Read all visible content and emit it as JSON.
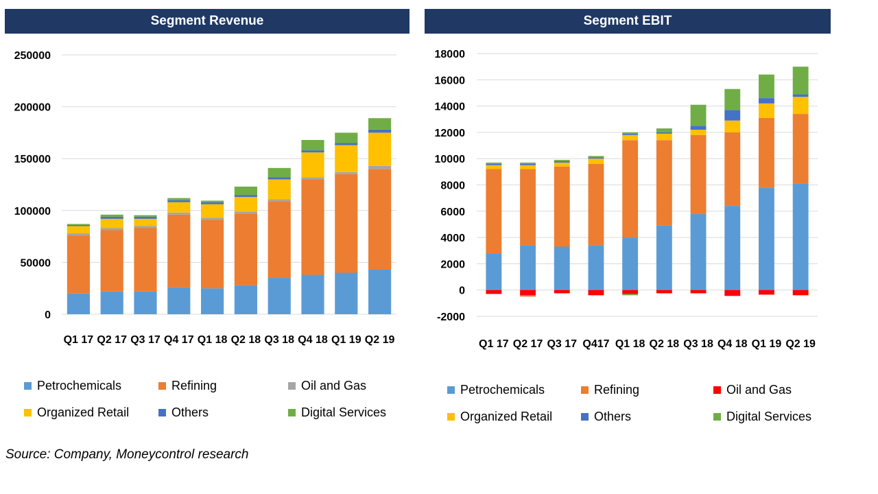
{
  "colors": {
    "Petrochemicals": "#5b9bd5",
    "Refining": "#ed7d31",
    "Oil and Gas": "#a5a5a5",
    "Organized Retail": "#ffc000",
    "Others": "#4472c4",
    "Digital Services": "#70ad47",
    "Oil and Gas EBIT": "#ff0000"
  },
  "source": "Source: Company, Moneycontrol research",
  "chart_data": [
    {
      "type": "bar",
      "stacked": true,
      "title": "Segment Revenue",
      "categories": [
        "Q1 17",
        "Q2 17",
        "Q3 17",
        "Q4 17",
        "Q1 18",
        "Q2 18",
        "Q3 18",
        "Q4 18",
        "Q1 19",
        "Q2 19"
      ],
      "ylim": [
        0,
        250000
      ],
      "yticks": [
        "0",
        "50000",
        "100000",
        "150000",
        "200000",
        "250000"
      ],
      "grid": true,
      "series": [
        {
          "name": "Petrochemicals",
          "color": "#5b9bd5",
          "values": [
            20000,
            22000,
            22000,
            26000,
            25000,
            28000,
            35000,
            38000,
            40000,
            43000
          ]
        },
        {
          "name": "Refining",
          "color": "#ed7d31",
          "values": [
            56000,
            59000,
            61000,
            70000,
            66000,
            69000,
            74000,
            92000,
            95000,
            97000
          ]
        },
        {
          "name": "Oil and Gas",
          "color": "#a5a5a5",
          "values": [
            2000,
            2000,
            2000,
            2000,
            2000,
            2000,
            2000,
            2000,
            2000,
            3000
          ]
        },
        {
          "name": "Organized Retail",
          "color": "#ffc000",
          "values": [
            7000,
            9000,
            7000,
            10000,
            13000,
            14000,
            19000,
            24000,
            26000,
            32000
          ]
        },
        {
          "name": "Others",
          "color": "#4472c4",
          "values": [
            1000,
            2000,
            2000,
            2000,
            2000,
            2000,
            2000,
            2000,
            2000,
            3000
          ]
        },
        {
          "name": "Digital Services",
          "color": "#70ad47",
          "values": [
            1000,
            2000,
            1500,
            2000,
            1500,
            8000,
            9000,
            10000,
            10000,
            11000
          ]
        }
      ],
      "legend": [
        {
          "label": "Petrochemicals",
          "color": "#5b9bd5"
        },
        {
          "label": "Refining",
          "color": "#ed7d31"
        },
        {
          "label": "Oil and Gas",
          "color": "#a5a5a5"
        },
        {
          "label": "Organized Retail",
          "color": "#ffc000"
        },
        {
          "label": "Others",
          "color": "#4472c4"
        },
        {
          "label": "Digital Services",
          "color": "#70ad47"
        }
      ]
    },
    {
      "type": "bar",
      "stacked": true,
      "title": "Segment EBIT",
      "categories": [
        "Q1 17",
        "Q2 17",
        "Q3 17",
        "Q4 17",
        "Q1 18",
        "Q2 18",
        "Q3 18",
        "Q4 18",
        "Q1 19",
        "Q2 19"
      ],
      "category_labels": [
        "Q1 17",
        "Q2 17",
        "Q3 17",
        "Q417",
        "Q1 18",
        "Q2 18",
        "Q3 18",
        "Q4 18",
        "Q1 19",
        "Q2 19"
      ],
      "ylim": [
        -2000,
        18000
      ],
      "yticks": [
        "-2000",
        "0",
        "2000",
        "4000",
        "6000",
        "8000",
        "10000",
        "12000",
        "14000",
        "16000",
        "18000"
      ],
      "grid": true,
      "series": [
        {
          "name": "Petrochemicals",
          "color": "#5b9bd5",
          "values": [
            2800,
            3400,
            3300,
            3400,
            4000,
            4900,
            5800,
            6400,
            7800,
            8100
          ]
        },
        {
          "name": "Refining",
          "color": "#ed7d31",
          "values": [
            6400,
            5800,
            6100,
            6200,
            7400,
            6500,
            6000,
            5600,
            5300,
            5300
          ]
        },
        {
          "name": "Oil and Gas",
          "color": "#ff0000",
          "values": [
            -300,
            -400,
            -250,
            -400,
            -300,
            -250,
            -250,
            -450,
            -350,
            -400
          ]
        },
        {
          "name": "Organized Retail",
          "color": "#ffc000",
          "values": [
            300,
            300,
            300,
            400,
            400,
            500,
            400,
            900,
            1100,
            1300
          ]
        },
        {
          "name": "Others",
          "color": "#4472c4",
          "values": [
            100,
            100,
            100,
            100,
            100,
            100,
            300,
            800,
            400,
            200
          ]
        },
        {
          "name": "Digital Services",
          "color": "#70ad47",
          "values": [
            100,
            100,
            100,
            100,
            100,
            300,
            1600,
            1600,
            1800,
            2100
          ]
        }
      ],
      "negative_extra": [
        {
          "color": "#70ad47",
          "values": [
            0,
            0,
            0,
            0,
            -100,
            0,
            0,
            0,
            0,
            0
          ]
        },
        {
          "color": "#ed7d31",
          "values": [
            0,
            -100,
            0,
            0,
            0,
            0,
            0,
            0,
            0,
            0
          ]
        }
      ],
      "legend": [
        {
          "label": "Petrochemicals",
          "color": "#5b9bd5"
        },
        {
          "label": "Refining",
          "color": "#ed7d31"
        },
        {
          "label": "Oil and Gas",
          "color": "#ff0000"
        },
        {
          "label": "Organized Retail",
          "color": "#ffc000"
        },
        {
          "label": "Others",
          "color": "#4472c4"
        },
        {
          "label": "Digital Services",
          "color": "#70ad47"
        }
      ]
    }
  ]
}
